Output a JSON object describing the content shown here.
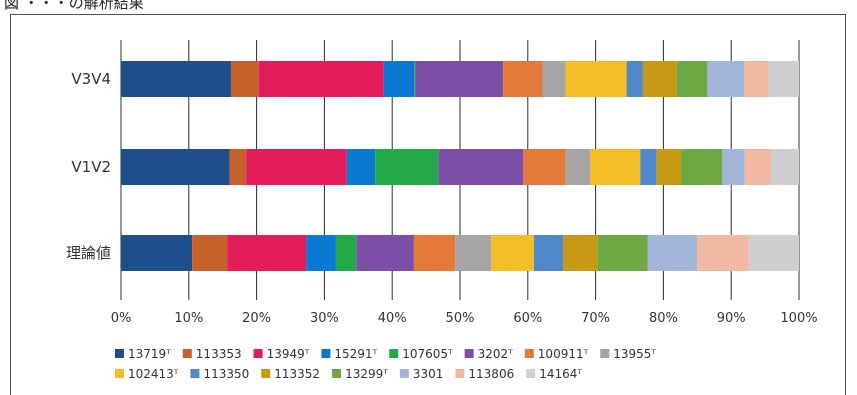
{
  "header": {
    "caption": "図 ・・・の解析結果"
  },
  "chart_data": {
    "type": "bar",
    "orientation": "horizontal",
    "stacked": "percent",
    "categories": [
      "V3V4",
      "V1V2",
      "理論値"
    ],
    "xlim": [
      0,
      100
    ],
    "x_ticks": [
      "0%",
      "10%",
      "20%",
      "30%",
      "40%",
      "50%",
      "60%",
      "70%",
      "80%",
      "90%",
      "100%"
    ],
    "grid": "vertical",
    "legend_position": "bottom",
    "series": [
      {
        "name": "13719ᵀ",
        "color": "#1f4e8c",
        "values": [
          16.2,
          16.0,
          10.5
        ]
      },
      {
        "name": "113353",
        "color": "#c5612a",
        "values": [
          4.1,
          2.5,
          5.2
        ]
      },
      {
        "name": "13949ᵀ",
        "color": "#e31b5b",
        "values": [
          18.4,
          14.8,
          11.6
        ]
      },
      {
        "name": "15291ᵀ",
        "color": "#0a78d0",
        "values": [
          4.5,
          4.2,
          4.4
        ]
      },
      {
        "name": "107605ᵀ",
        "color": "#23a94a",
        "values": [
          0.2,
          9.3,
          3.0
        ]
      },
      {
        "name": "3202ᵀ",
        "color": "#7b4fa6",
        "values": [
          12.9,
          12.5,
          8.5
        ]
      },
      {
        "name": "100911ᵀ",
        "color": "#e37a3a",
        "values": [
          5.8,
          6.3,
          6.1
        ]
      },
      {
        "name": "13955ᵀ",
        "color": "#a5a5a5",
        "values": [
          3.4,
          3.6,
          5.3
        ]
      },
      {
        "name": "102413ᵀ",
        "color": "#f5bd27",
        "values": [
          9.0,
          7.4,
          6.3
        ]
      },
      {
        "name": "113350",
        "color": "#4f89c9",
        "values": [
          2.4,
          2.4,
          4.3
        ]
      },
      {
        "name": "113352",
        "color": "#c89914",
        "values": [
          5.0,
          3.6,
          5.1
        ]
      },
      {
        "name": "13299ᵀ",
        "color": "#6ea842",
        "values": [
          4.5,
          6.1,
          7.4
        ]
      },
      {
        "name": "3301",
        "color": "#a4b5da",
        "values": [
          5.4,
          3.3,
          7.3
        ]
      },
      {
        "name": "113806",
        "color": "#f1b9a3",
        "values": [
          3.6,
          3.8,
          7.6
        ]
      },
      {
        "name": "14164ᵀ",
        "color": "#cfcfcf",
        "values": [
          4.5,
          4.2,
          7.4
        ]
      }
    ]
  }
}
